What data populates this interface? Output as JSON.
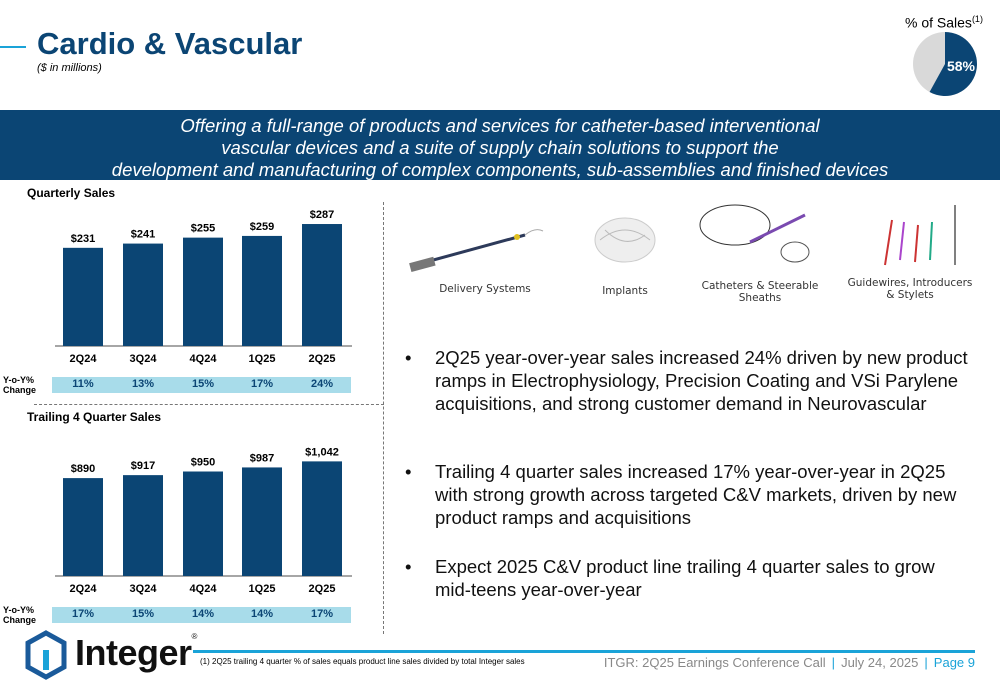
{
  "header": {
    "title": "Cardio & Vascular",
    "subtitle": "($ in millions)",
    "pie_label": "% of Sales",
    "pie_footnote_ref": "(1)",
    "pie_value_label": "58%",
    "pie_share": 0.58
  },
  "banner": {
    "lines": [
      "Offering a full-range of products and services for catheter-based interventional",
      "vascular devices and a suite of supply chain solutions to support the",
      "development and manufacturing of complex components, sub-assemblies and finished devices"
    ]
  },
  "colors": {
    "navy": "#0b4574",
    "accent": "#1aa3d8",
    "yoy_band": "#a8dcea",
    "pie_other": "#d9d9d9"
  },
  "yoy_label": [
    "Y-o-Y%",
    "Change"
  ],
  "chart_data": [
    {
      "type": "bar",
      "title": "Quarterly Sales",
      "categories": [
        "2Q24",
        "3Q24",
        "4Q24",
        "1Q25",
        "2Q25"
      ],
      "values": [
        231,
        241,
        255,
        259,
        287
      ],
      "data_labels": [
        "$231",
        "$241",
        "$255",
        "$259",
        "$287"
      ],
      "yoy_change": [
        "11%",
        "13%",
        "15%",
        "17%",
        "24%"
      ],
      "ylim": [
        0,
        300
      ],
      "grid": false
    },
    {
      "type": "bar",
      "title": "Trailing 4 Quarter Sales",
      "categories": [
        "2Q24",
        "3Q24",
        "4Q24",
        "1Q25",
        "2Q25"
      ],
      "values": [
        890,
        917,
        950,
        987,
        1042
      ],
      "data_labels": [
        "$890",
        "$917",
        "$950",
        "$987",
        "$1,042"
      ],
      "yoy_change": [
        "17%",
        "15%",
        "14%",
        "14%",
        "17%"
      ],
      "ylim": [
        0,
        1100
      ],
      "grid": false
    }
  ],
  "products": [
    {
      "label": "Delivery Systems"
    },
    {
      "label": "Implants"
    },
    {
      "label": "Catheters & Steerable Sheaths"
    },
    {
      "label": "Guidewires, Introducers & Stylets"
    }
  ],
  "bullets": [
    "2Q25 year-over-year sales increased 24% driven by new product ramps in Electrophysiology, Precision Coating and VSi Parylene acquisitions, and strong customer demand in Neurovascular",
    "Trailing 4 quarter sales increased 17% year-over-year in 2Q25 with strong growth across targeted C&V markets, driven by new product ramps and acquisitions",
    "Expect 2025 C&V product line trailing 4 quarter sales to grow mid-teens year-over-year"
  ],
  "bullet_char": "•",
  "footer": {
    "logo": "Integer",
    "footnote": "(1)   2Q25 trailing 4 quarter % of sales equals product line sales divided by total Integer sales",
    "event": "ITGR: 2Q25 Earnings Conference Call",
    "date": "July 24, 2025",
    "page": "Page 9",
    "sep": "|"
  }
}
